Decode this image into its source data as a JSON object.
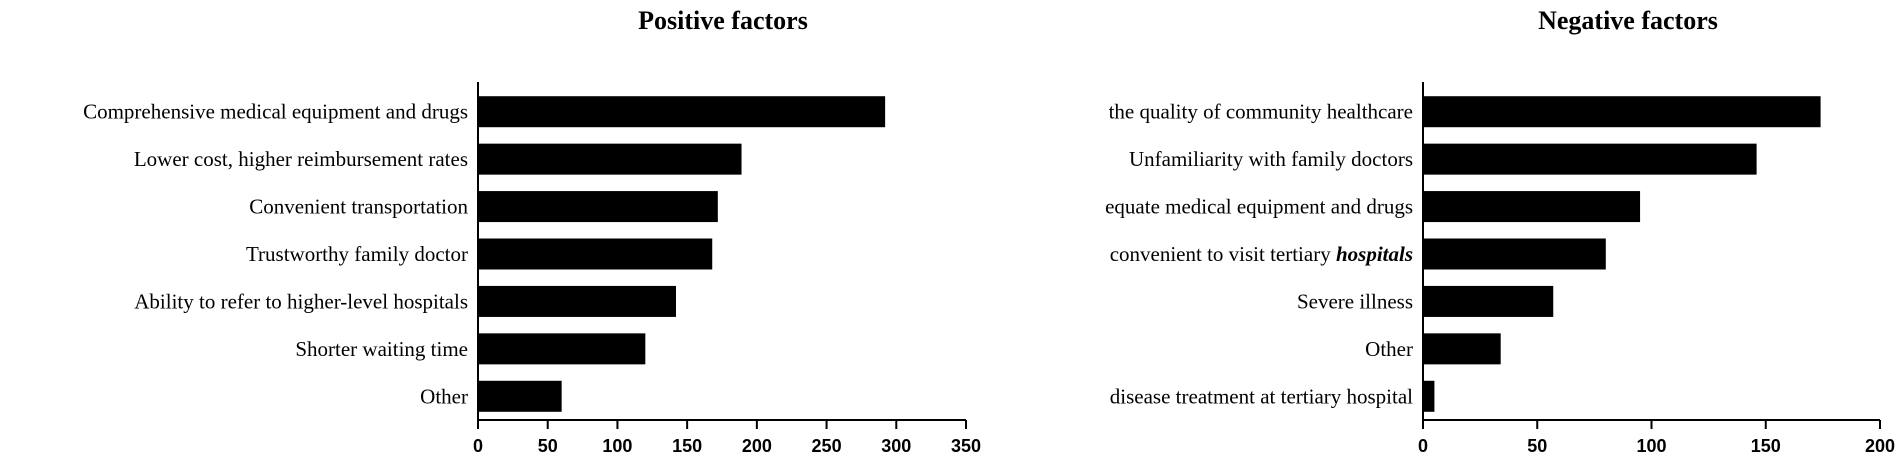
{
  "chart_data": [
    {
      "type": "bar",
      "orientation": "horizontal",
      "title": "Positive factors",
      "categories": [
        "Comprehensive medical equipment and drugs",
        "Lower cost, higher reimbursement rates",
        "Convenient transportation",
        "Trustworthy family doctor",
        "Ability to refer to higher-level hospitals",
        "Shorter waiting time",
        "Other"
      ],
      "values": [
        292,
        189,
        172,
        168,
        142,
        120,
        60
      ],
      "xlim": [
        0,
        350
      ],
      "xticks": [
        0,
        50,
        100,
        150,
        200,
        250,
        300,
        350
      ],
      "bar_color": "#000000",
      "grid": false
    },
    {
      "type": "bar",
      "orientation": "horizontal",
      "title": "Negative factors",
      "categories": [
        "the quality of community healthcare",
        "Unfamiliarity with family doctors",
        "equate medical equipment and drugs",
        "convenient to visit tertiary hospitals",
        "Severe illness",
        "Other",
        "disease treatment at tertiary hospital"
      ],
      "values": [
        174,
        146,
        95,
        80,
        57,
        34,
        5
      ],
      "xlim": [
        0,
        200
      ],
      "xticks": [
        0,
        50,
        100,
        150,
        200
      ],
      "bar_color": "#000000",
      "grid": false
    }
  ]
}
